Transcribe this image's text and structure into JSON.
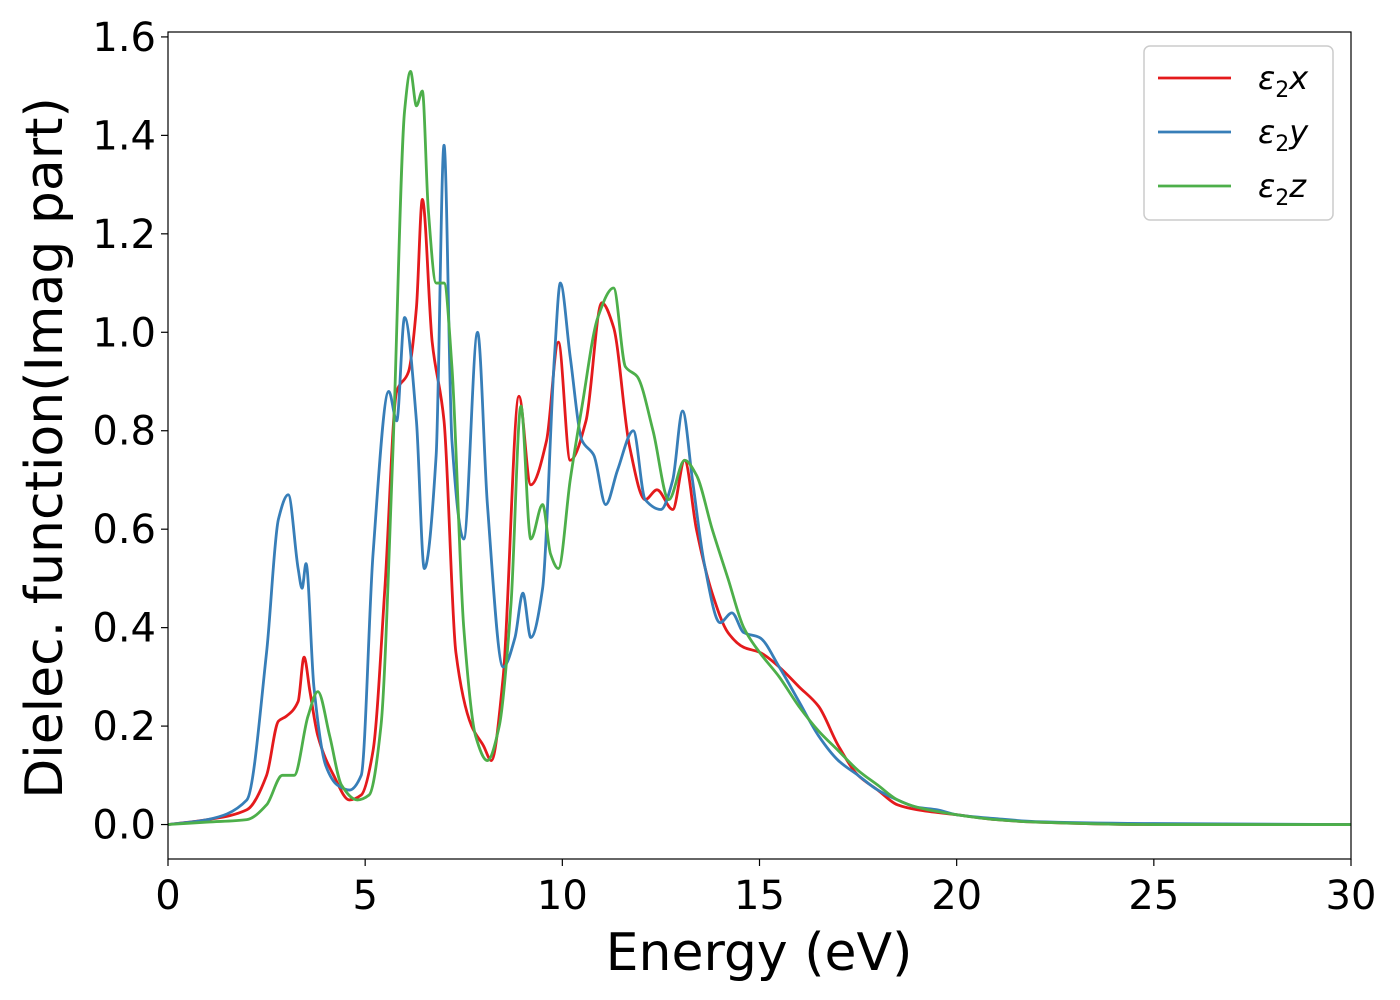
{
  "chart_data": {
    "type": "line",
    "title": "",
    "xlabel": "Energy (eV)",
    "ylabel": "Dielec. function(Imag part)",
    "xlim": [
      0,
      30
    ],
    "ylim": [
      -0.07,
      1.61
    ],
    "xticks": [
      0,
      5,
      10,
      15,
      20,
      25,
      30
    ],
    "xtick_labels": [
      "0",
      "5",
      "10",
      "15",
      "20",
      "25",
      "30"
    ],
    "yticks": [
      0.0,
      0.2,
      0.4,
      0.6,
      0.8,
      1.0,
      1.2,
      1.4,
      1.6
    ],
    "ytick_labels": [
      "0.0",
      "0.2",
      "0.4",
      "0.6",
      "0.8",
      "1.0",
      "1.2",
      "1.4",
      "1.6"
    ],
    "grid": false,
    "legend_position": "top-right",
    "series": [
      {
        "name": "ε₂x",
        "legend_main": "ε",
        "legend_sub": "2",
        "legend_suffix": "x",
        "color": "#e41a1c",
        "x": [
          0,
          1,
          2,
          2.5,
          2.8,
          3.0,
          3.3,
          3.45,
          3.6,
          3.8,
          4.2,
          4.6,
          4.9,
          5.2,
          5.5,
          5.8,
          6.1,
          6.3,
          6.45,
          6.7,
          7.0,
          7.3,
          7.7,
          8.0,
          8.2,
          8.5,
          8.9,
          9.2,
          9.6,
          9.9,
          10.2,
          10.6,
          11.0,
          11.3,
          11.7,
          12.1,
          12.4,
          12.8,
          13.1,
          13.4,
          13.8,
          14.2,
          14.6,
          15.0,
          15.5,
          16.0,
          16.5,
          17.0,
          17.5,
          18.0,
          18.5,
          19.0,
          20.0,
          21.0,
          22.0,
          25.0,
          30.0
        ],
        "y": [
          0.0,
          0.01,
          0.03,
          0.1,
          0.21,
          0.22,
          0.25,
          0.34,
          0.27,
          0.18,
          0.1,
          0.05,
          0.06,
          0.15,
          0.48,
          0.88,
          0.92,
          1.05,
          1.27,
          0.98,
          0.82,
          0.35,
          0.2,
          0.16,
          0.13,
          0.3,
          0.87,
          0.69,
          0.78,
          0.98,
          0.74,
          0.82,
          1.06,
          1.01,
          0.77,
          0.66,
          0.68,
          0.64,
          0.74,
          0.6,
          0.47,
          0.39,
          0.36,
          0.35,
          0.32,
          0.28,
          0.24,
          0.16,
          0.1,
          0.07,
          0.04,
          0.03,
          0.02,
          0.01,
          0.005,
          0.0,
          0.0
        ]
      },
      {
        "name": "ε₂y",
        "legend_main": "ε",
        "legend_sub": "2",
        "legend_suffix": "y",
        "color": "#377eb8",
        "x": [
          0,
          1,
          2,
          2.5,
          2.8,
          3.05,
          3.3,
          3.4,
          3.5,
          3.7,
          4.0,
          4.3,
          4.6,
          4.9,
          5.2,
          5.6,
          5.8,
          6.0,
          6.3,
          6.5,
          6.8,
          7.0,
          7.2,
          7.5,
          7.85,
          8.1,
          8.5,
          8.8,
          9.0,
          9.2,
          9.5,
          9.8,
          9.95,
          10.2,
          10.5,
          10.8,
          11.1,
          11.4,
          11.8,
          12.1,
          12.5,
          12.8,
          13.05,
          13.3,
          13.6,
          14.0,
          14.3,
          14.6,
          15.0,
          15.5,
          16.0,
          16.5,
          17.0,
          17.5,
          18.0,
          18.5,
          19.0,
          19.5,
          20.0,
          21.0,
          22.0,
          25.0,
          30.0
        ],
        "y": [
          0.0,
          0.01,
          0.05,
          0.35,
          0.62,
          0.67,
          0.52,
          0.48,
          0.53,
          0.28,
          0.12,
          0.08,
          0.07,
          0.1,
          0.55,
          0.88,
          0.82,
          1.03,
          0.82,
          0.52,
          0.75,
          1.38,
          0.78,
          0.58,
          1.0,
          0.65,
          0.32,
          0.38,
          0.47,
          0.38,
          0.48,
          0.95,
          1.1,
          0.95,
          0.78,
          0.75,
          0.65,
          0.72,
          0.8,
          0.66,
          0.64,
          0.7,
          0.84,
          0.7,
          0.53,
          0.41,
          0.43,
          0.39,
          0.38,
          0.32,
          0.25,
          0.18,
          0.13,
          0.1,
          0.07,
          0.05,
          0.035,
          0.03,
          0.02,
          0.012,
          0.006,
          0.002,
          0.0
        ]
      },
      {
        "name": "ε₂z",
        "legend_main": "ε",
        "legend_sub": "2",
        "legend_suffix": "z",
        "color": "#4daf4a",
        "x": [
          0,
          1,
          2,
          2.5,
          2.9,
          3.2,
          3.55,
          3.8,
          4.1,
          4.4,
          4.8,
          5.1,
          5.4,
          5.7,
          6.0,
          6.15,
          6.3,
          6.45,
          6.6,
          6.8,
          7.0,
          7.2,
          7.5,
          7.8,
          8.1,
          8.4,
          8.7,
          8.95,
          9.2,
          9.5,
          9.7,
          9.9,
          10.2,
          10.5,
          10.9,
          11.3,
          11.6,
          11.9,
          12.3,
          12.7,
          13.1,
          13.4,
          13.8,
          14.2,
          14.6,
          15.0,
          15.5,
          16.0,
          16.5,
          17.0,
          17.5,
          18.0,
          18.5,
          19.0,
          20.0,
          21.0,
          22.0,
          25.0,
          30.0
        ],
        "y": [
          0.0,
          0.005,
          0.01,
          0.04,
          0.1,
          0.1,
          0.22,
          0.27,
          0.18,
          0.08,
          0.05,
          0.06,
          0.2,
          0.75,
          1.45,
          1.53,
          1.46,
          1.49,
          1.25,
          1.1,
          1.1,
          0.93,
          0.4,
          0.18,
          0.13,
          0.2,
          0.45,
          0.85,
          0.58,
          0.65,
          0.55,
          0.52,
          0.7,
          0.85,
          1.03,
          1.09,
          0.93,
          0.91,
          0.8,
          0.66,
          0.74,
          0.71,
          0.6,
          0.5,
          0.4,
          0.35,
          0.3,
          0.24,
          0.19,
          0.15,
          0.11,
          0.08,
          0.05,
          0.035,
          0.02,
          0.01,
          0.005,
          0.0,
          0.0
        ]
      }
    ]
  }
}
